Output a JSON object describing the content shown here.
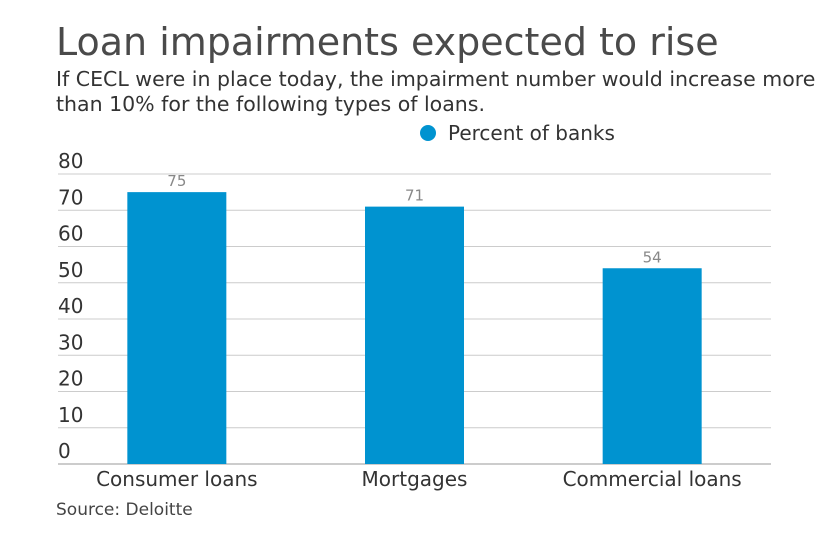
{
  "title": "Loan impairments expected to rise",
  "subtitle": "If CECL were in place today, the impairment number would increase more than 10% for the following types of loans.",
  "source": "Source: Deloitte",
  "colors": {
    "bar": "#0093d0",
    "grid": "#cccccc",
    "value_label": "#888888"
  },
  "chart_data": {
    "type": "bar",
    "categories": [
      "Consumer loans",
      "Mortgages",
      "Commercial loans"
    ],
    "series": [
      {
        "name": "Percent of banks",
        "values": [
          75,
          71,
          54
        ]
      }
    ],
    "ylim": [
      0,
      80
    ],
    "yticks": [
      0,
      10,
      20,
      30,
      40,
      50,
      60,
      70,
      80
    ],
    "grid": true,
    "legend": "top-right",
    "data_labels": true
  }
}
